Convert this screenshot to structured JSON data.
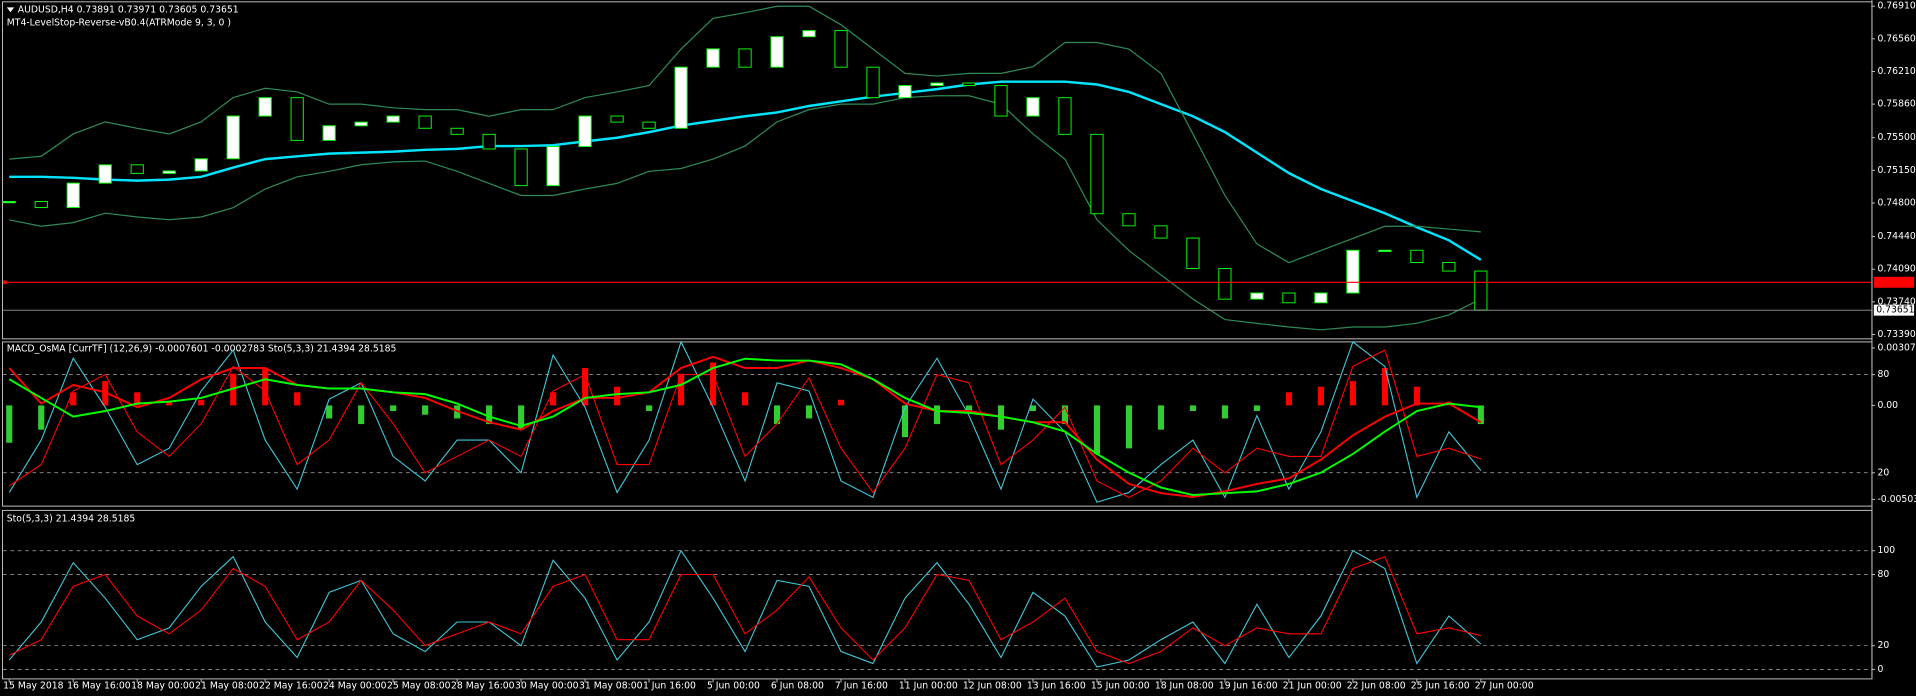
{
  "chart_data": [
    {
      "type": "candlestick",
      "title": "AUDUSD,H4  0.73891 0.73971 0.73605 0.73651",
      "subtitle": "MT4-LevelStop-Reverse-vB0.4(ATRMode 9, 3, 0 )",
      "up_color": "#ffffff",
      "down_color": "#000000",
      "wick_color": "#00ff00",
      "values": [
        0.74816,
        0.74751,
        0.75013,
        0.75209,
        0.75117,
        0.75143,
        0.75274,
        0.75732,
        0.75929,
        0.75471,
        0.75628,
        0.75667,
        0.75732,
        0.75601,
        0.75536,
        0.75379,
        0.74986,
        0.75405,
        0.75732,
        0.75667,
        0.75601,
        0.76256,
        0.76452,
        0.76256,
        0.76583,
        0.76648,
        0.76256,
        0.75929,
        0.76059,
        0.76086,
        0.76059,
        0.75732,
        0.75929,
        0.75536,
        0.74685,
        0.74555,
        0.74424,
        0.74097,
        0.73769,
        0.73835,
        0.7373,
        0.73835,
        0.74293,
        0.74293,
        0.74162,
        0.7407,
        0.73651
      ],
      "overlays": [
        {
          "color": "#00e5ff",
          "width": 2,
          "values": [
            0.7508,
            0.7508,
            0.7507,
            0.7505,
            0.7504,
            0.7505,
            0.7508,
            0.7518,
            0.7527,
            0.753,
            0.7533,
            0.7534,
            0.7535,
            0.7537,
            0.7538,
            0.7541,
            0.7541,
            0.7542,
            0.7546,
            0.755,
            0.7556,
            0.7563,
            0.7568,
            0.7573,
            0.7577,
            0.7584,
            0.7589,
            0.7594,
            0.7598,
            0.7602,
            0.7607,
            0.761,
            0.761,
            0.761,
            0.7607,
            0.7599,
            0.7586,
            0.7573,
            0.7556,
            0.7534,
            0.7512,
            0.7495,
            0.7482,
            0.7469,
            0.7454,
            0.744,
            0.7419
          ]
        },
        {
          "color": "#2e8b57",
          "width": 1,
          "values": [
            0.7527,
            0.753,
            0.7554,
            0.7567,
            0.756,
            0.7554,
            0.7567,
            0.7593,
            0.7603,
            0.7599,
            0.7586,
            0.7586,
            0.7582,
            0.758,
            0.758,
            0.7573,
            0.758,
            0.758,
            0.7593,
            0.7599,
            0.7606,
            0.7645,
            0.7678,
            0.7684,
            0.7691,
            0.7691,
            0.7671,
            0.7645,
            0.7619,
            0.7616,
            0.7619,
            0.7619,
            0.7626,
            0.7652,
            0.7652,
            0.7645,
            0.7619,
            0.7554,
            0.7488,
            0.7436,
            0.7416,
            0.7429,
            0.7442,
            0.7455,
            0.7455,
            0.7452,
            0.7449
          ]
        },
        {
          "color": "#2e8b57",
          "width": 1,
          "values": [
            0.7462,
            0.7455,
            0.7459,
            0.7469,
            0.7465,
            0.7462,
            0.7465,
            0.7475,
            0.7495,
            0.7508,
            0.7514,
            0.7521,
            0.7524,
            0.7525,
            0.7514,
            0.7501,
            0.7488,
            0.7488,
            0.7495,
            0.7501,
            0.7514,
            0.7517,
            0.7527,
            0.7541,
            0.7567,
            0.758,
            0.7586,
            0.7586,
            0.7593,
            0.7595,
            0.7595,
            0.7586,
            0.7554,
            0.7527,
            0.7462,
            0.7429,
            0.7403,
            0.7377,
            0.7355,
            0.7351,
            0.7347,
            0.7344,
            0.7347,
            0.7347,
            0.7351,
            0.736,
            0.7377
          ]
        }
      ],
      "level_line": {
        "value": 0.7395,
        "color": "#ff0000"
      },
      "last_price": {
        "value": 0.73651,
        "label": "0.73651",
        "color": "#9a9a9a"
      },
      "ylim": [
        0.7335,
        0.7695
      ],
      "yticks": [
        {
          "value": 0.7691,
          "label": "0.76910"
        },
        {
          "value": 0.7656,
          "label": "0.76560"
        },
        {
          "value": 0.7621,
          "label": "0.76210"
        },
        {
          "value": 0.7586,
          "label": "0.75860"
        },
        {
          "value": 0.755,
          "label": "0.75500"
        },
        {
          "value": 0.7515,
          "label": "0.75150"
        },
        {
          "value": 0.748,
          "label": "0.74800"
        },
        {
          "value": 0.7444,
          "label": "0.74440"
        },
        {
          "value": 0.7409,
          "label": "0.74090"
        },
        {
          "value": 0.7374,
          "label": "0.73740"
        },
        {
          "value": 0.7339,
          "label": "0.73390"
        }
      ]
    },
    {
      "type": "macd",
      "title": "MACD_OsMA [CurrTF] (12,26,9) -0.0007601 -0.0002783  Sto(5,3,3) 21.4394 28.5185",
      "histogram": {
        "up_color": "#ff0000",
        "down_color": "#32cd32",
        "values": [
          -0.002,
          -0.0013,
          0.0007,
          0.0013,
          0.0007,
          0.0002,
          0.0003,
          0.0017,
          0.002,
          0.0007,
          -0.0007,
          -0.001,
          -0.0003,
          -0.0005,
          -0.0007,
          -0.001,
          -0.0013,
          0.0007,
          0.002,
          0.001,
          -0.0003,
          0.0017,
          0.0023,
          0.0007,
          -0.001,
          -0.0007,
          0.0003,
          0,
          -0.0017,
          -0.001,
          -0.0003,
          -0.0013,
          -0.0003,
          -0.001,
          -0.0026,
          -0.0023,
          -0.0013,
          -0.0003,
          -0.0007,
          -0.0003,
          0.0007,
          0.001,
          0.0013,
          0.002,
          0.001,
          0.0002,
          -0.001
        ]
      },
      "series": [
        {
          "color": "#ff0000",
          "values": [
            0.002,
            0.0001,
            0.0011,
            0.0007,
            -0.0001,
            0.0004,
            0.0014,
            0.002,
            0.002,
            0.0011,
            0.0009,
            0.0009,
            0.0007,
            0.0004,
            -0.0003,
            -0.0009,
            -0.0013,
            -0.0003,
            0.0004,
            0.0004,
            0.0007,
            0.002,
            0.0026,
            0.002,
            0.002,
            0.0024,
            0.002,
            0.0014,
            0.0001,
            -0.0003,
            -0.0003,
            -0.0006,
            -0.0009,
            -0.0009,
            -0.0029,
            -0.0042,
            -0.0047,
            -0.0049,
            -0.0046,
            -0.0042,
            -0.0039,
            -0.0029,
            -0.0016,
            -0.0006,
            0.0001,
            0.0001,
            -0.0009
          ]
        },
        {
          "color": "#00ff00",
          "values": [
            0.0014,
            0.0004,
            -0.0006,
            -0.0003,
            0.0001,
            0.0002,
            0.0004,
            0.0009,
            0.0014,
            0.0011,
            0.0009,
            0.0009,
            0.0007,
            0.0006,
            0.0001,
            -0.0006,
            -0.0011,
            -0.0006,
            0.0004,
            0.0006,
            0.0007,
            0.0011,
            0.002,
            0.0025,
            0.0024,
            0.0024,
            0.0022,
            0.0014,
            0.0004,
            -0.0003,
            -0.0004,
            -0.0006,
            -0.0009,
            -0.0014,
            -0.0026,
            -0.0036,
            -0.0044,
            -0.0048,
            -0.0047,
            -0.0046,
            -0.0042,
            -0.0036,
            -0.0026,
            -0.0014,
            -0.0003,
            0.0001,
            -0.0001
          ]
        }
      ],
      "ylim": [
        -0.00536,
        0.0034
      ],
      "yticks": [
        0.003074,
        {
          "value": 0,
          "label": "0.00"
        },
        -0.005031
      ],
      "y2lim": [
        0,
        100
      ],
      "y2ticks": [
        80,
        20
      ],
      "grid": "y2"
    },
    {
      "type": "line",
      "title": "Sto(5,3,3) 21.4394 28.5185",
      "categories": [
        "15 May 2018",
        null,
        "16 May 16:00",
        null,
        "18 May 00:00",
        null,
        "21 May 08:00",
        null,
        "22 May 16:00",
        null,
        "24 May 00:00",
        null,
        "25 May 08:00",
        null,
        "28 May 16:00",
        null,
        "30 May 00:00",
        null,
        "31 May 08:00",
        null,
        "1 Jun 16:00",
        null,
        "5 Jun 00:00",
        null,
        "6 Jun 08:00",
        null,
        "7 Jun 16:00",
        null,
        "11 Jun 00:00",
        null,
        "12 Jun 08:00",
        null,
        "13 Jun 16:00",
        null,
        "15 Jun 00:00",
        null,
        "18 Jun 08:00",
        null,
        "19 Jun 16:00",
        null,
        "21 Jun 00:00",
        null,
        "22 Jun 08:00",
        null,
        "25 Jun 16:00",
        null,
        "27 Jun 00:00"
      ],
      "series": [
        {
          "color": "#40c8d8",
          "values": [
            8,
            40,
            90,
            60,
            25,
            35,
            70,
            95,
            40,
            10,
            65,
            75,
            30,
            15,
            40,
            40,
            20,
            92,
            60,
            8,
            40,
            100,
            60,
            15,
            75,
            70,
            15,
            5,
            60,
            90,
            55,
            10,
            65,
            45,
            2,
            8,
            25,
            40,
            5,
            55,
            10,
            45,
            100,
            85,
            5,
            45,
            21.4394
          ]
        },
        {
          "color": "#ff0000",
          "values": [
            12,
            25,
            70,
            80,
            45,
            30,
            50,
            85,
            70,
            25,
            40,
            75,
            50,
            20,
            30,
            40,
            30,
            70,
            80,
            25,
            25,
            80,
            80,
            30,
            50,
            78,
            35,
            8,
            35,
            80,
            75,
            25,
            40,
            60,
            15,
            5,
            15,
            35,
            20,
            35,
            30,
            30,
            85,
            95,
            30,
            35,
            28.5185
          ]
        }
      ],
      "ylim": [
        -8,
        134
      ],
      "yticks": [
        100,
        80,
        20,
        0
      ],
      "grid": "y"
    }
  ]
}
